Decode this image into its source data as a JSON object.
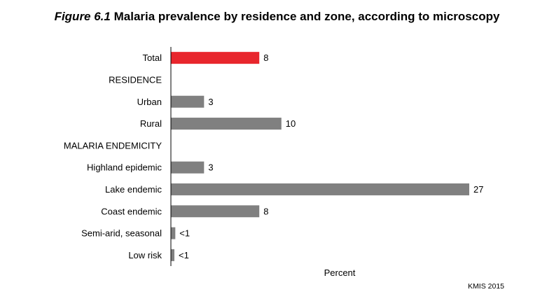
{
  "title": {
    "figure_number": "Figure 6.1",
    "text": "Malaria prevalence by residence and zone, according to microscopy"
  },
  "source": "KMIS 2015",
  "chart_data": {
    "type": "bar",
    "orientation": "horizontal",
    "title": "Figure 6.1 Malaria prevalence by residence and zone, according to microscopy",
    "xlabel": "Percent",
    "ylabel": "",
    "xlim": [
      0,
      27
    ],
    "grid": false,
    "colors": {
      "highlight": "#e8262d",
      "default": "#808080"
    },
    "rows": [
      {
        "label": "Total",
        "value": 8,
        "display": "8",
        "highlight": true
      },
      {
        "label": "RESIDENCE",
        "header": true
      },
      {
        "label": "Urban",
        "value": 3,
        "display": "3"
      },
      {
        "label": "Rural",
        "value": 10,
        "display": "10"
      },
      {
        "label": "MALARIA ENDEMICITY",
        "header": true
      },
      {
        "label": "Highland epidemic",
        "value": 3,
        "display": "3"
      },
      {
        "label": "Lake endemic",
        "value": 27,
        "display": "27"
      },
      {
        "label": "Coast endemic",
        "value": 8,
        "display": "8"
      },
      {
        "label": "Semi-arid, seasonal",
        "value": 0.4,
        "display": "<1"
      },
      {
        "label": "Low risk",
        "value": 0.3,
        "display": "<1"
      }
    ]
  }
}
